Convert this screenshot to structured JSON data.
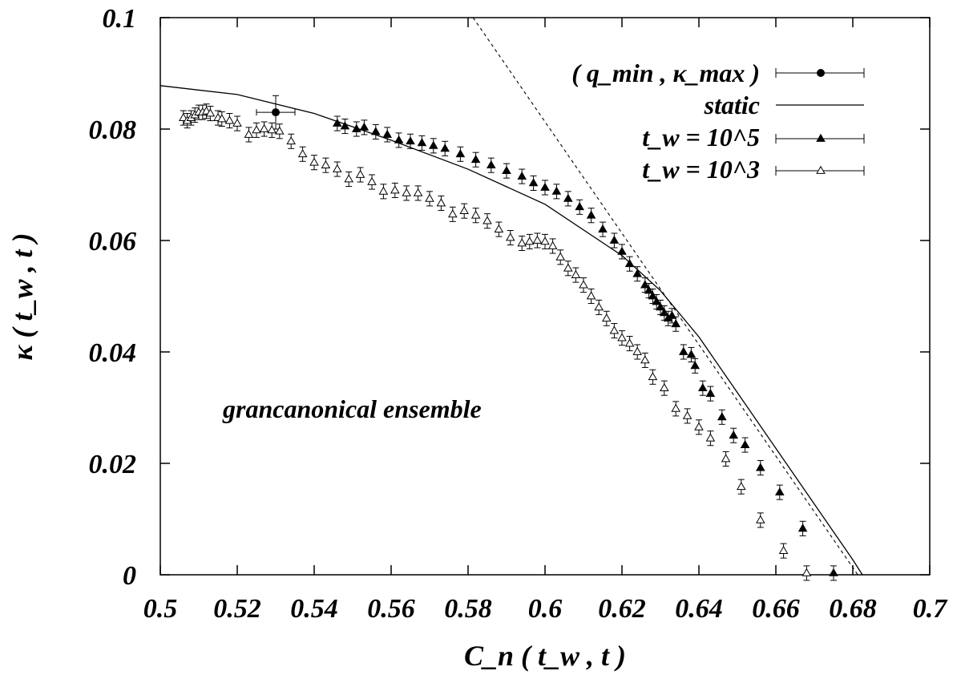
{
  "chart_data": {
    "type": "scatter",
    "xlabel": "C_n ( t_w , t )",
    "ylabel": "κ ( t_w , t )",
    "xlim": [
      0.5,
      0.7
    ],
    "ylim": [
      0,
      0.1
    ],
    "x_ticks": [
      "0.5",
      "0.52",
      "0.54",
      "0.56",
      "0.58",
      "0.6",
      "0.62",
      "0.64",
      "0.66",
      "0.68",
      "0.7"
    ],
    "y_ticks": [
      "0",
      "0.02",
      "0.04",
      "0.06",
      "0.08",
      "0.1"
    ],
    "annotation": "grancanonical ensemble",
    "legend_position": "top-right",
    "legend": [
      {
        "label": "( q_min , κ_max )"
      },
      {
        "label": "static"
      },
      {
        "label": "t_w = 10^5"
      },
      {
        "label": "t_w = 10^3"
      }
    ],
    "series": [
      {
        "name": "( q_min , κ_max )",
        "marker": "filled-circle",
        "points": [
          [
            0.53,
            0.083
          ]
        ],
        "yerr": 0.003,
        "xerr": 0.005
      },
      {
        "name": "static",
        "marker": "line",
        "x": [
          0.5,
          0.52,
          0.54,
          0.56,
          0.58,
          0.6,
          0.62,
          0.63,
          0.64,
          0.65,
          0.66,
          0.67,
          0.675,
          0.68,
          0.6825
        ],
        "y": [
          0.0878,
          0.0862,
          0.0828,
          0.078,
          0.0728,
          0.0665,
          0.0573,
          0.051,
          0.0427,
          0.0327,
          0.0227,
          0.0127,
          0.0077,
          0.0027,
          0.0
        ]
      },
      {
        "name": "tangent",
        "marker": "dashed-line",
        "x": [
          0.5813,
          0.6813
        ],
        "y": [
          0.1,
          0.0
        ]
      },
      {
        "name": "t_w = 10^5",
        "marker": "filled-triangle",
        "yerr": 0.0013,
        "x": [
          0.546,
          0.548,
          0.551,
          0.553,
          0.556,
          0.559,
          0.562,
          0.565,
          0.568,
          0.571,
          0.574,
          0.578,
          0.582,
          0.586,
          0.59,
          0.594,
          0.597,
          0.6,
          0.603,
          0.606,
          0.609,
          0.612,
          0.615,
          0.618,
          0.62,
          0.622,
          0.624,
          0.626,
          0.627,
          0.628,
          0.629,
          0.63,
          0.631,
          0.632,
          0.633,
          0.634,
          0.636,
          0.638,
          0.639,
          0.641,
          0.643,
          0.646,
          0.649,
          0.652,
          0.656,
          0.661,
          0.667,
          0.675
        ],
        "y": [
          0.081,
          0.0805,
          0.08,
          0.0803,
          0.0795,
          0.079,
          0.078,
          0.0778,
          0.0775,
          0.077,
          0.0765,
          0.0755,
          0.0745,
          0.0735,
          0.0725,
          0.0715,
          0.0703,
          0.0695,
          0.0688,
          0.0675,
          0.066,
          0.0645,
          0.062,
          0.06,
          0.058,
          0.0558,
          0.054,
          0.052,
          0.051,
          0.05,
          0.049,
          0.048,
          0.047,
          0.046,
          0.0465,
          0.045,
          0.04,
          0.0395,
          0.0375,
          0.0335,
          0.0325,
          0.0283,
          0.025,
          0.0233,
          0.0192,
          0.0148,
          0.0083,
          0.0003
        ]
      },
      {
        "name": "t_w = 10^3",
        "marker": "open-triangle",
        "yerr": 0.0013,
        "x": [
          0.506,
          0.507,
          0.508,
          0.509,
          0.51,
          0.511,
          0.512,
          0.513,
          0.515,
          0.516,
          0.518,
          0.52,
          0.523,
          0.525,
          0.527,
          0.529,
          0.531,
          0.534,
          0.537,
          0.54,
          0.543,
          0.546,
          0.549,
          0.552,
          0.555,
          0.558,
          0.561,
          0.564,
          0.567,
          0.57,
          0.573,
          0.576,
          0.579,
          0.582,
          0.585,
          0.588,
          0.591,
          0.594,
          0.596,
          0.598,
          0.6,
          0.602,
          0.604,
          0.606,
          0.608,
          0.61,
          0.612,
          0.614,
          0.616,
          0.618,
          0.62,
          0.622,
          0.624,
          0.626,
          0.628,
          0.631,
          0.634,
          0.637,
          0.64,
          0.643,
          0.647,
          0.651,
          0.656,
          0.662,
          0.668
        ],
        "y": [
          0.082,
          0.0815,
          0.082,
          0.0825,
          0.083,
          0.083,
          0.0832,
          0.0828,
          0.082,
          0.0818,
          0.0815,
          0.081,
          0.079,
          0.0798,
          0.08,
          0.0798,
          0.0796,
          0.0778,
          0.0755,
          0.074,
          0.0735,
          0.0728,
          0.071,
          0.0718,
          0.0705,
          0.0688,
          0.069,
          0.0685,
          0.0685,
          0.0675,
          0.0667,
          0.0647,
          0.0653,
          0.0645,
          0.0635,
          0.062,
          0.0605,
          0.0595,
          0.0598,
          0.06,
          0.0598,
          0.059,
          0.057,
          0.055,
          0.0538,
          0.052,
          0.05,
          0.048,
          0.046,
          0.0438,
          0.0425,
          0.0415,
          0.04,
          0.0385,
          0.0355,
          0.0335,
          0.0298,
          0.0285,
          0.0265,
          0.0245,
          0.0208,
          0.0158,
          0.0098,
          0.0043,
          0.0003
        ]
      }
    ]
  }
}
